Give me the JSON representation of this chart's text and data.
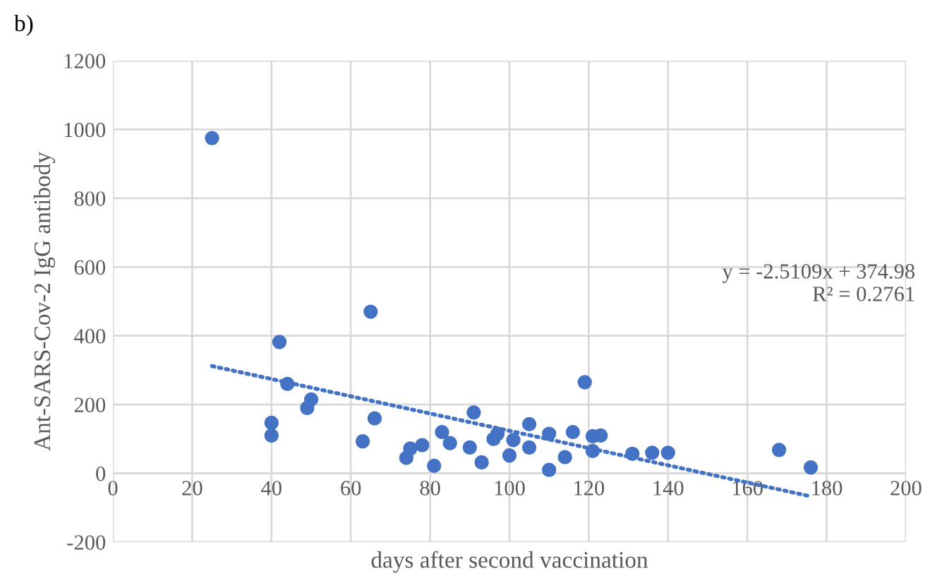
{
  "chart_data": {
    "type": "scatter",
    "title": "b)",
    "xlabel": "days after second vaccination",
    "ylabel": "Ant-SARS-Cov-2 IgG antibody",
    "series": [
      {
        "color": "#4472c4",
        "marker": "circle",
        "x": [
          25,
          40,
          40,
          42,
          44,
          49,
          50,
          63,
          65,
          66,
          74,
          75,
          78,
          81,
          83,
          85,
          90,
          91,
          93,
          96,
          97,
          100,
          101,
          105,
          105,
          110,
          110,
          114,
          116,
          119,
          121,
          121,
          123,
          131,
          136,
          140,
          168,
          176
        ],
        "values": [
          975,
          147,
          110,
          382,
          260,
          190,
          215,
          93,
          470,
          160,
          45,
          72,
          82,
          22,
          120,
          88,
          75,
          177,
          32,
          100,
          115,
          52,
          97,
          143,
          75,
          10,
          115,
          47,
          120,
          265,
          108,
          65,
          110,
          57,
          60,
          60,
          68,
          17
        ]
      },
      {
        "type": "line",
        "color": "#4472c4",
        "line_style": "dotted",
        "marker": "none",
        "x": [
          25,
          176
        ],
        "values": [
          312,
          -67
        ]
      }
    ],
    "annotations": [
      "y = -2.5109x + 374.98\nR² = 0.2761"
    ],
    "xlim": [
      0,
      200
    ],
    "xticks": [
      0,
      20,
      40,
      60,
      80,
      100,
      120,
      140,
      160,
      180,
      200
    ],
    "ylim": [
      -200,
      1200
    ],
    "yticks": [
      -200,
      0,
      200,
      400,
      600,
      800,
      1000,
      1200
    ],
    "grid": true,
    "legend": false
  }
}
